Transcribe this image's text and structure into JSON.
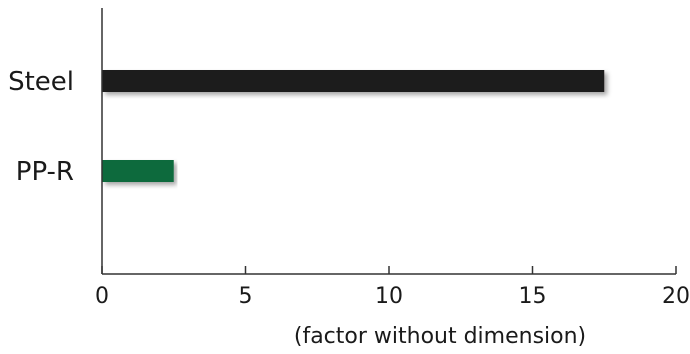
{
  "chart_data": {
    "type": "bar",
    "orientation": "horizontal",
    "categories": [
      "Steel",
      "PP-R"
    ],
    "values": [
      17.5,
      2.5
    ],
    "colors": [
      "#1f1a1a",
      "#116a3c"
    ],
    "xlabel": "(factor without dimension)",
    "xlim": [
      0,
      20
    ],
    "xticks": [
      0,
      5,
      10,
      15,
      20
    ],
    "grid": false
  }
}
